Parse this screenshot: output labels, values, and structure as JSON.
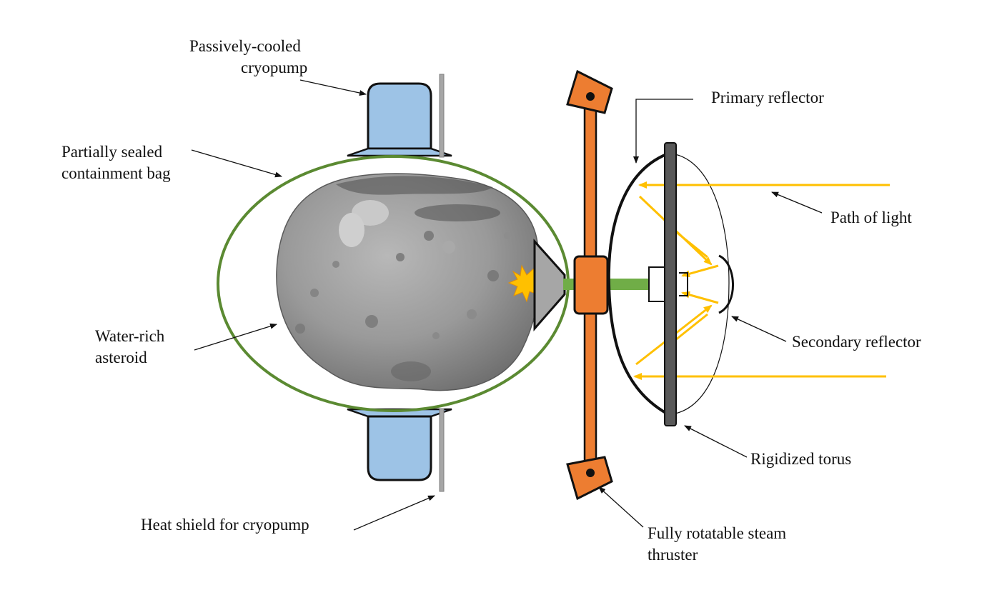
{
  "labels": {
    "cryopump": [
      "Passively-cooled",
      "cryopump"
    ],
    "bag": [
      "Partially sealed",
      "containment bag"
    ],
    "asteroid": [
      "Water-rich",
      "asteroid"
    ],
    "heat_shield": [
      "Heat shield for cryopump"
    ],
    "primary": [
      "Primary reflector"
    ],
    "path": [
      "Path of light"
    ],
    "secondary": [
      "Secondary reflector"
    ],
    "torus": [
      "Rigidized torus"
    ],
    "thruster": [
      "Fully rotatable steam",
      "thruster"
    ]
  },
  "colors": {
    "bag": "#5b8a32",
    "cryopump": "#9dc3e6",
    "thruster": "#ed7d31",
    "light": "#ffc000",
    "shaft": "#70ad47",
    "torus": "#595959",
    "cone": "#a6a6a6",
    "asteroid": "#8c8c8c"
  }
}
